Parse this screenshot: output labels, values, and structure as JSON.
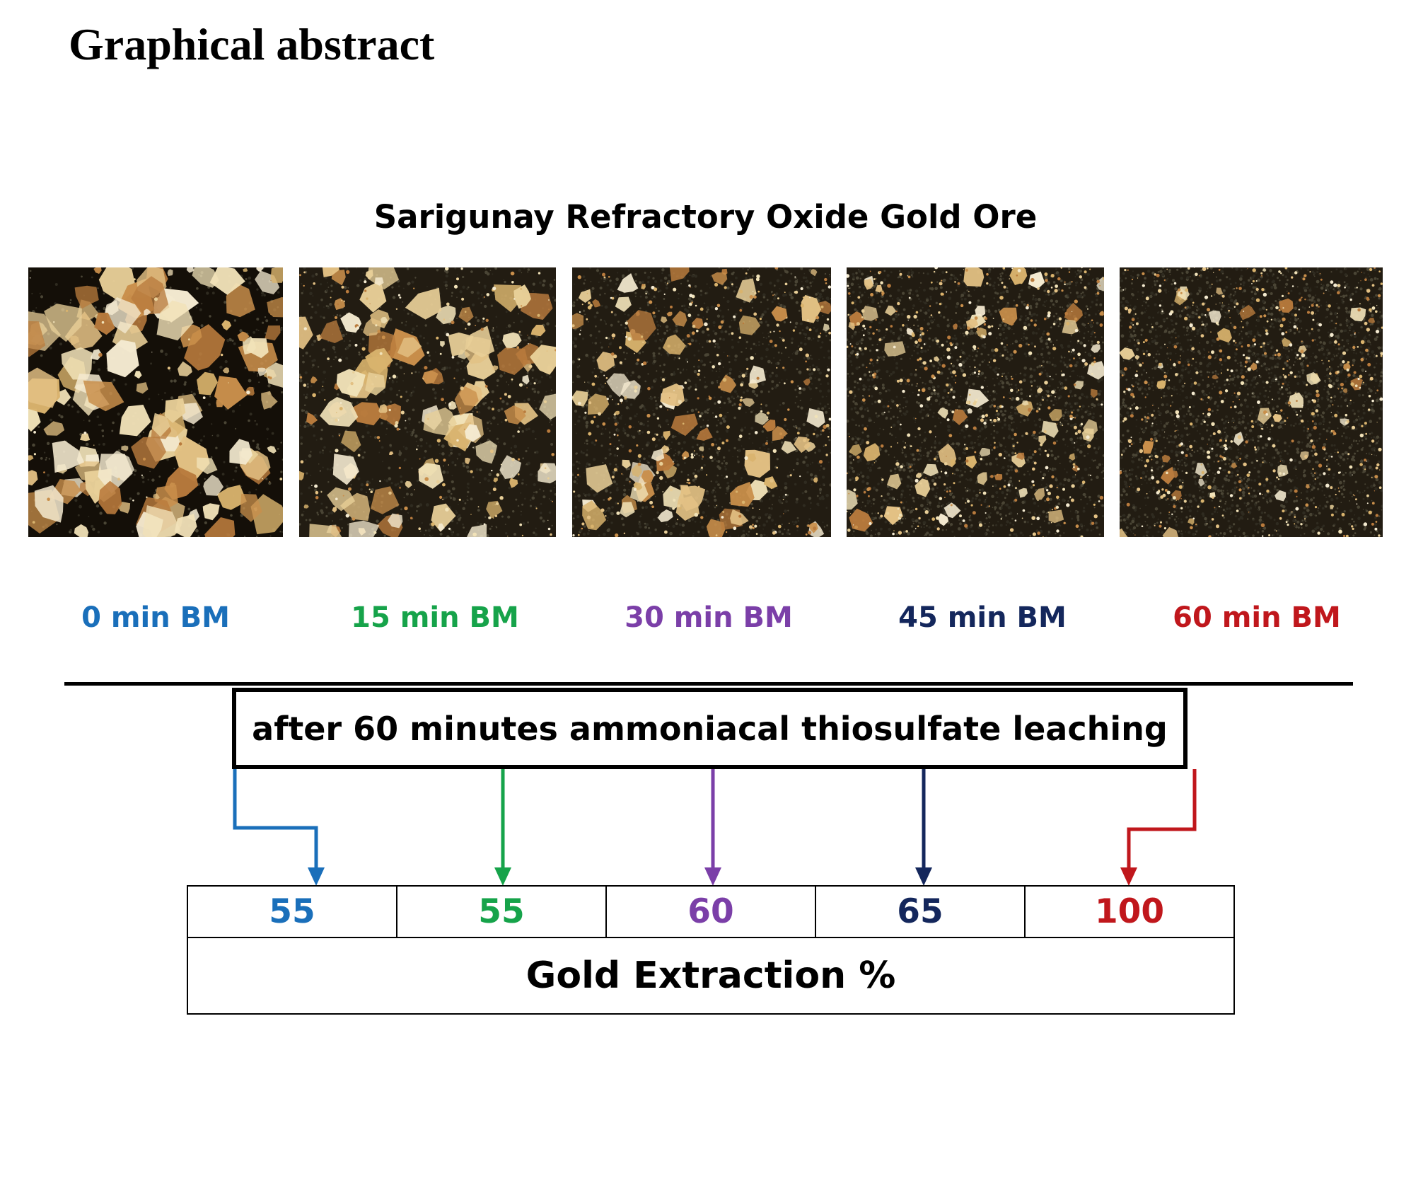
{
  "heading": "Graphical abstract",
  "ore_title": "Sarigunay Refractory Oxide Gold Ore",
  "samples": [
    {
      "label": "0 min BM",
      "color": "#1a6fba",
      "extraction": "55",
      "fine_fraction": 0.05
    },
    {
      "label": "15 min BM",
      "color": "#16a34a",
      "extraction": "55",
      "fine_fraction": 0.3
    },
    {
      "label": "30 min BM",
      "color": "#7b3fa8",
      "extraction": "60",
      "fine_fraction": 0.5
    },
    {
      "label": "45 min BM",
      "color": "#14275c",
      "extraction": "65",
      "fine_fraction": 0.75
    },
    {
      "label": "60 min BM",
      "color": "#c0171c",
      "extraction": "100",
      "fine_fraction": 0.92
    }
  ],
  "leaching_step": "after 60 minutes ammoniacal thiosulfate leaching",
  "result_caption": "Gold Extraction %"
}
